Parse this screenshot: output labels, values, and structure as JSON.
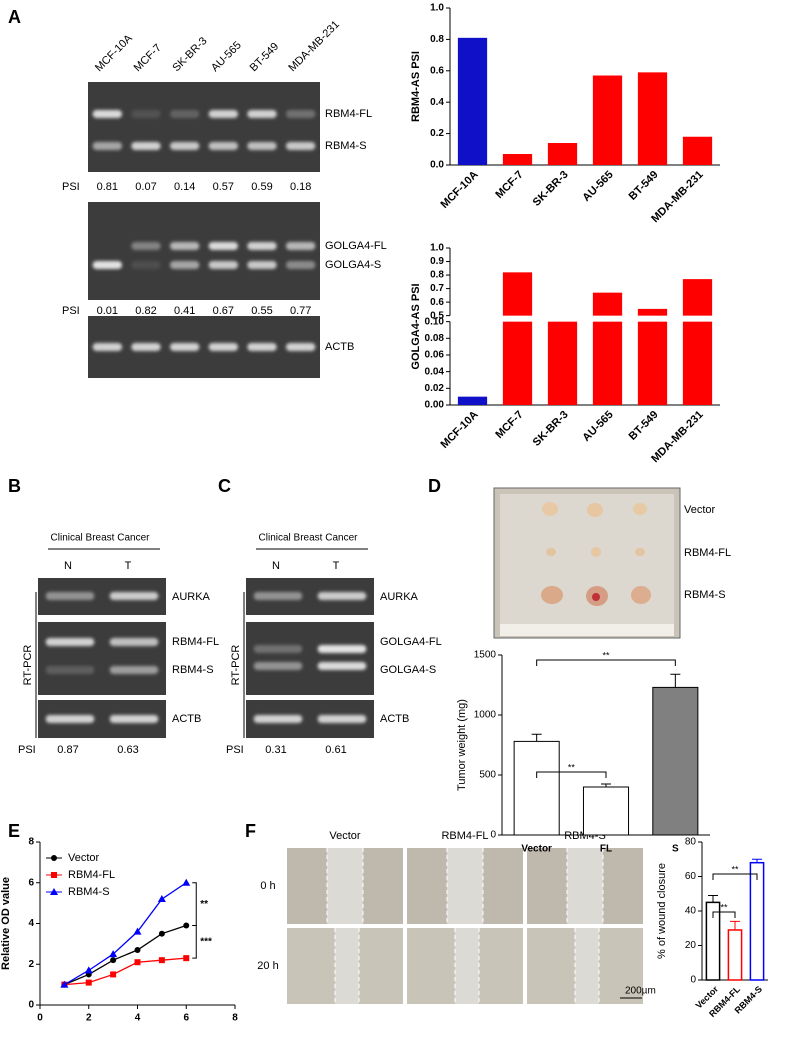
{
  "figure": {
    "panel_labels": [
      "A",
      "B",
      "C",
      "D",
      "E",
      "F"
    ],
    "a": {
      "lanes": [
        "MCF-10A",
        "MCF-7",
        "SK-BR-3",
        "AU-565",
        "BT-549",
        "MDA-MB-231"
      ],
      "gel_labels": [
        "RBM4-FL",
        "RBM4-S",
        "GOLGA4-FL",
        "GOLGA4-S",
        "ACTB"
      ],
      "psi_label": "PSI",
      "psi_rbm4": [
        0.81,
        0.07,
        0.14,
        0.57,
        0.59,
        0.18
      ],
      "psi_golga4": [
        0.01,
        0.82,
        0.41,
        0.67,
        0.55,
        0.77
      ]
    },
    "b": {
      "header": "Clinical Breast Cancer",
      "lanes": [
        "N",
        "T"
      ],
      "method": "RT-PCR",
      "gel_labels": [
        "AURKA",
        "RBM4-FL",
        "RBM4-S",
        "ACTB"
      ],
      "psi_label": "PSI",
      "psi": [
        0.87,
        0.63
      ]
    },
    "c": {
      "header": "Clinical Breast Cancer",
      "lanes": [
        "N",
        "T"
      ],
      "method": "RT-PCR",
      "gel_labels": [
        "AURKA",
        "GOLGA4-FL",
        "GOLGA4-S",
        "ACTB"
      ],
      "psi_label": "PSI",
      "psi": [
        0.31,
        0.61
      ]
    },
    "d": {
      "groups": [
        "Vector",
        "RBM4-FL",
        "RBM4-S"
      ]
    },
    "f": {
      "columns": [
        "Vector",
        "RBM4-FL",
        "RBM4-S"
      ],
      "rows": [
        "0 h",
        "20 h"
      ],
      "scale_bar": "200µm"
    }
  },
  "chart_data": [
    {
      "type": "bar",
      "ylabel": "RBM4-AS PSI",
      "categories": [
        "MCF-10A",
        "MCF-7",
        "SK-BR-3",
        "AU-565",
        "BT-549",
        "MDA-MB-231"
      ],
      "values": [
        0.81,
        0.07,
        0.14,
        0.57,
        0.59,
        0.18
      ],
      "colors": [
        "#1010c8",
        "#ff0000",
        "#ff0000",
        "#ff0000",
        "#ff0000",
        "#ff0000"
      ],
      "ylim": [
        0,
        1
      ],
      "yticks": [
        {
          "value": 0,
          "label": "0.0"
        },
        0.2,
        0.4,
        0.6,
        0.8,
        {
          "value": 1,
          "label": "1.0"
        }
      ]
    },
    {
      "type": "bar",
      "ylabel": "GOLGA4-AS PSI",
      "categories": [
        "MCF-10A",
        "MCF-7",
        "SK-BR-3",
        "AU-565",
        "BT-549",
        "MDA-MB-231"
      ],
      "values": [
        0.01,
        0.82,
        0.41,
        0.67,
        0.55,
        0.77
      ],
      "colors": [
        "#1010c8",
        "#ff0000",
        "#ff0000",
        "#ff0000",
        "#ff0000",
        "#ff0000"
      ],
      "ylim": [
        0,
        1
      ],
      "ybreak": [
        0.1,
        0.5
      ],
      "yticks": [
        {
          "value": 0,
          "label": "0.00"
        },
        {
          "value": 0.02,
          "label": "0.02"
        },
        {
          "value": 0.04,
          "label": "0.04"
        },
        {
          "value": 0.06,
          "label": "0.06"
        },
        {
          "value": 0.08,
          "label": "0.08"
        },
        {
          "value": 0.1,
          "label": "0.10"
        },
        0.5,
        0.6,
        0.7,
        0.8,
        0.9,
        {
          "value": 1,
          "label": "1.0"
        }
      ]
    },
    {
      "type": "bar",
      "ylabel": "Tumor weight (mg)",
      "categories": [
        "Vector",
        "FL",
        "S"
      ],
      "values": [
        780,
        400,
        1230
      ],
      "errors": [
        60,
        25,
        110
      ],
      "colors": [
        "#ffffff",
        "#ffffff",
        "#808080"
      ],
      "edge_colors": [
        "#000000",
        "#000000",
        "#000000"
      ],
      "ylim": [
        0,
        1500
      ],
      "yticks": [
        0,
        500,
        1000,
        1500
      ],
      "annotations": [
        "**",
        "**"
      ]
    },
    {
      "type": "line",
      "ylabel": "Relative OD value",
      "x": [
        1,
        2,
        3,
        4,
        5,
        6
      ],
      "series": [
        {
          "name": "Vector",
          "color": "#000000",
          "marker": "o",
          "values": [
            1.0,
            1.5,
            2.2,
            2.7,
            3.5,
            3.9
          ]
        },
        {
          "name": "RBM4-FL",
          "color": "#ff0000",
          "marker": "s",
          "values": [
            1.0,
            1.1,
            1.5,
            2.1,
            2.2,
            2.3
          ]
        },
        {
          "name": "RBM4-S",
          "color": "#0000ff",
          "marker": "^",
          "values": [
            1.0,
            1.7,
            2.5,
            3.6,
            5.2,
            6.0
          ]
        }
      ],
      "xlim": [
        0,
        8
      ],
      "xticks": [
        0,
        2,
        4,
        6,
        8
      ],
      "ylim": [
        0,
        8
      ],
      "yticks": [
        0,
        2,
        4,
        6,
        8
      ],
      "annotations": [
        "**",
        "***"
      ]
    },
    {
      "type": "bar",
      "ylabel": "% of wound closure",
      "categories": [
        "Vector",
        "RBM4-FL",
        "RBM4-S"
      ],
      "values": [
        45,
        29,
        68
      ],
      "errors": [
        4,
        5,
        2
      ],
      "colors": [
        "#ffffff",
        "#ffffff",
        "#ffffff"
      ],
      "edge_colors": [
        "#000000",
        "#ff0000",
        "#0000ff"
      ],
      "ylim": [
        0,
        80
      ],
      "yticks": [
        0,
        20,
        40,
        60,
        80
      ],
      "annotations": [
        "**",
        "**"
      ]
    }
  ]
}
